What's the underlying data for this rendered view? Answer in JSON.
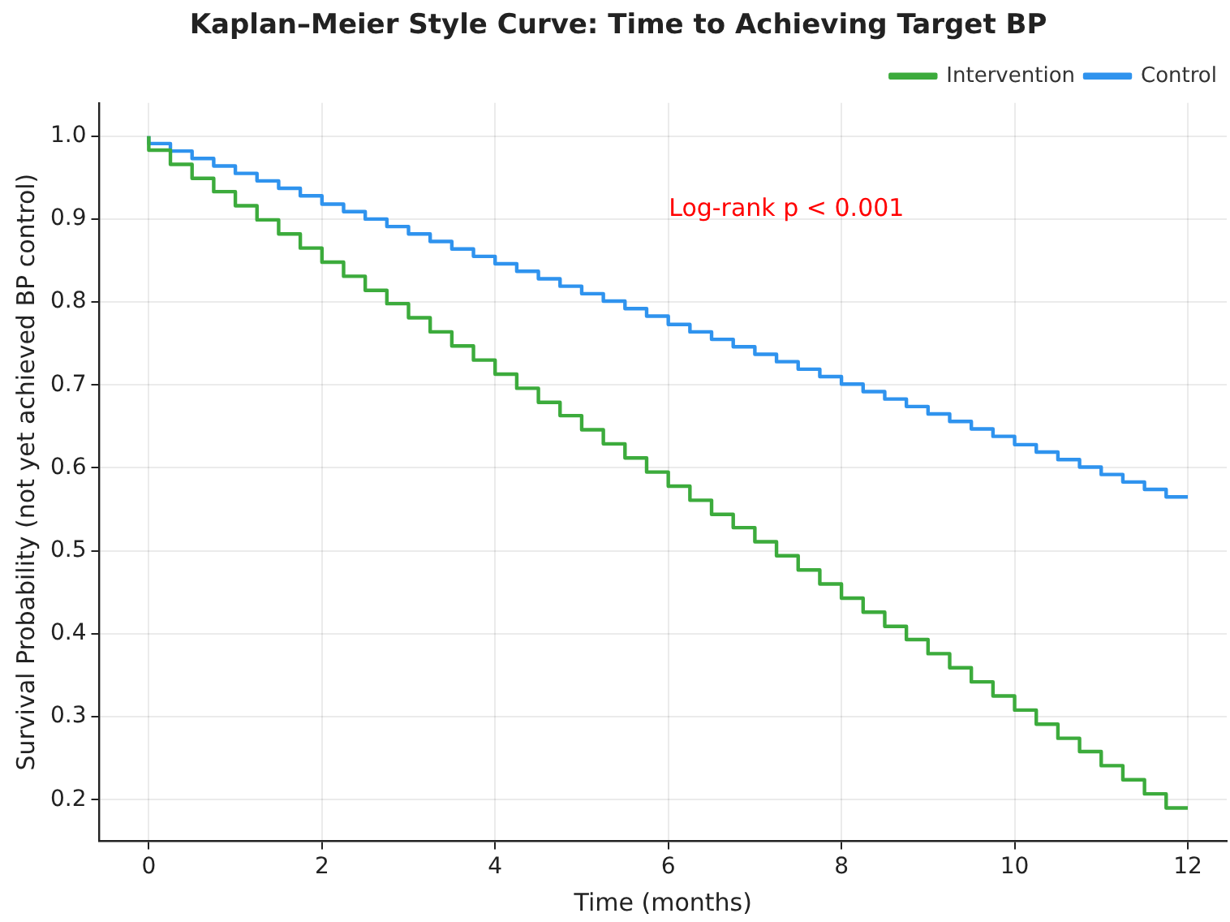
{
  "chart_data": {
    "type": "step",
    "title": "Kaplan–Meier Style Curve: Time to Achieving Target BP",
    "xlabel": "Time (months)",
    "ylabel": "Survival Probability (not yet achieved BP control)",
    "x": [
      0,
      0.25,
      0.5,
      0.75,
      1,
      1.25,
      1.5,
      1.75,
      2,
      2.25,
      2.5,
      2.75,
      3,
      3.25,
      3.5,
      3.75,
      4,
      4.25,
      4.5,
      4.75,
      5,
      5.25,
      5.5,
      5.75,
      6,
      6.25,
      6.5,
      6.75,
      7,
      7.25,
      7.5,
      7.75,
      8,
      8.25,
      8.5,
      8.75,
      9,
      9.25,
      9.5,
      9.75,
      10,
      10.25,
      10.5,
      10.75,
      11,
      11.25,
      11.5,
      11.75,
      12
    ],
    "series": [
      {
        "name": "Intervention",
        "color": "#3cab3c",
        "values": [
          1,
          0.983,
          0.966,
          0.949,
          0.933,
          0.916,
          0.899,
          0.882,
          0.865,
          0.848,
          0.831,
          0.814,
          0.798,
          0.781,
          0.764,
          0.747,
          0.73,
          0.713,
          0.696,
          0.679,
          0.663,
          0.646,
          0.629,
          0.612,
          0.595,
          0.578,
          0.561,
          0.544,
          0.528,
          0.511,
          0.494,
          0.477,
          0.46,
          0.443,
          0.426,
          0.409,
          0.393,
          0.376,
          0.359,
          0.342,
          0.325,
          0.308,
          0.291,
          0.274,
          0.258,
          0.241,
          0.224,
          0.207,
          0.19
        ]
      },
      {
        "name": "Control",
        "color": "#2f93ee",
        "values": [
          1,
          0.991,
          0.982,
          0.973,
          0.964,
          0.955,
          0.946,
          0.937,
          0.928,
          0.918,
          0.909,
          0.9,
          0.891,
          0.882,
          0.873,
          0.864,
          0.855,
          0.846,
          0.837,
          0.828,
          0.819,
          0.81,
          0.801,
          0.792,
          0.783,
          0.773,
          0.764,
          0.755,
          0.746,
          0.737,
          0.728,
          0.719,
          0.71,
          0.701,
          0.692,
          0.683,
          0.674,
          0.665,
          0.656,
          0.647,
          0.638,
          0.628,
          0.619,
          0.61,
          0.601,
          0.592,
          0.583,
          0.574,
          0.565
        ]
      }
    ],
    "xlim": [
      -0.57,
      12.45
    ],
    "xticks": [
      0,
      2,
      4,
      6,
      8,
      10,
      12
    ],
    "ylim": [
      0.15,
      1.04
    ],
    "yticks": [
      {
        "value": 0.2,
        "label": "0.2"
      },
      {
        "value": 0.3,
        "label": "0.3"
      },
      {
        "value": 0.4,
        "label": "0.4"
      },
      {
        "value": 0.5,
        "label": "0.5"
      },
      {
        "value": 0.6,
        "label": "0.6"
      },
      {
        "value": 0.7,
        "label": "0.7"
      },
      {
        "value": 0.8,
        "label": "0.8"
      },
      {
        "value": 0.9,
        "label": "0.9"
      },
      {
        "value": 1,
        "label": "1.0"
      }
    ],
    "annotations": [
      "Log-rank p < 0.001"
    ],
    "grid": true,
    "legend": "top right",
    "line_style": "solid",
    "marker": "none"
  }
}
